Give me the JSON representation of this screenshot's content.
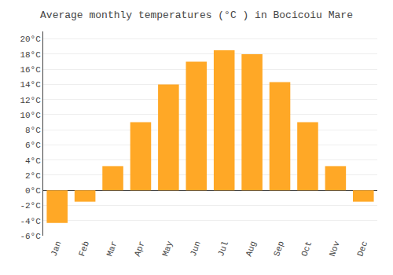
{
  "chart_data": {
    "type": "bar",
    "title": "Average monthly temperatures (°C ) in Bocicoiu Mare",
    "categories": [
      "Jan",
      "Feb",
      "Mar",
      "Apr",
      "May",
      "Jun",
      "Jul",
      "Aug",
      "Sep",
      "Oct",
      "Nov",
      "Dec"
    ],
    "values": [
      -4.3,
      -1.5,
      3.2,
      9.0,
      14.0,
      17.0,
      18.5,
      18.0,
      14.3,
      9.0,
      3.2,
      -1.5
    ],
    "color": "#FFA826",
    "ylim": [
      -6,
      21
    ],
    "yticks": [
      {
        "value": -6,
        "label": "-6°C"
      },
      {
        "value": -4,
        "label": "-4°C"
      },
      {
        "value": -2,
        "label": "-2°C"
      },
      {
        "value": 0,
        "label": "0°C"
      },
      {
        "value": 2,
        "label": "2°C"
      },
      {
        "value": 4,
        "label": "4°C"
      },
      {
        "value": 6,
        "label": "6°C"
      },
      {
        "value": 8,
        "label": "8°C"
      },
      {
        "value": 10,
        "label": "10°C"
      },
      {
        "value": 12,
        "label": "12°C"
      },
      {
        "value": 14,
        "label": "14°C"
      },
      {
        "value": 16,
        "label": "16°C"
      },
      {
        "value": 18,
        "label": "18°C"
      },
      {
        "value": 20,
        "label": "20°C"
      }
    ],
    "grid": true
  }
}
